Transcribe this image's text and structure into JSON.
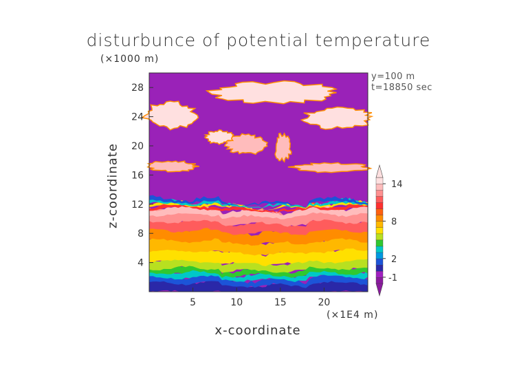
{
  "chart_data": {
    "type": "heatmap",
    "title": "disturbunce of potential temperature",
    "xlabel": "x-coordinate",
    "ylabel": "z-coordinate",
    "x_unit": "(×1E4 m)",
    "y_unit": "(×1000 m)",
    "annotations": [
      "y=100 m",
      "t=18850 sec"
    ],
    "xlim": [
      0,
      25
    ],
    "ylim": [
      0,
      30
    ],
    "xticks": [
      5,
      10,
      15,
      20
    ],
    "yticks": [
      4,
      8,
      12,
      16,
      20,
      24,
      28
    ],
    "colorbar": {
      "ticks": [
        14,
        8,
        2,
        -1
      ],
      "colors": [
        "#8a1a9e",
        "#a020c0",
        "#2a28a8",
        "#1c54d8",
        "#0098e0",
        "#00c8c8",
        "#30c830",
        "#b8e020",
        "#ffe000",
        "#ffb800",
        "#ff8c00",
        "#ff6010",
        "#ff3030",
        "#ff5c5c",
        "#ff9090",
        "#ffbcbc",
        "#ffe0e0"
      ]
    },
    "bands": [
      {
        "z_range": [
          0,
          1.5
        ],
        "value": -1,
        "description": "blue/purple near surface"
      },
      {
        "z_range": [
          1.5,
          4
        ],
        "value": 2,
        "description": "green-yellow layer"
      },
      {
        "z_range": [
          4,
          8
        ],
        "value": 8,
        "description": "orange layer"
      },
      {
        "z_range": [
          8,
          11.5
        ],
        "value": 12,
        "description": "red-pink layer"
      },
      {
        "z_range": [
          12,
          12.6
        ],
        "value": -1,
        "description": "blue inversion line"
      },
      {
        "z_range": [
          12.6,
          16
        ],
        "value": -2,
        "description": "magenta background"
      },
      {
        "z_range": [
          16,
          18
        ],
        "value": 14,
        "description": "pink streaks"
      },
      {
        "z_range": [
          19,
          23
        ],
        "value": 14,
        "description": "broken pink clouds"
      },
      {
        "z_range": [
          23,
          29
        ],
        "value": 14,
        "description": "pink cap"
      }
    ]
  }
}
